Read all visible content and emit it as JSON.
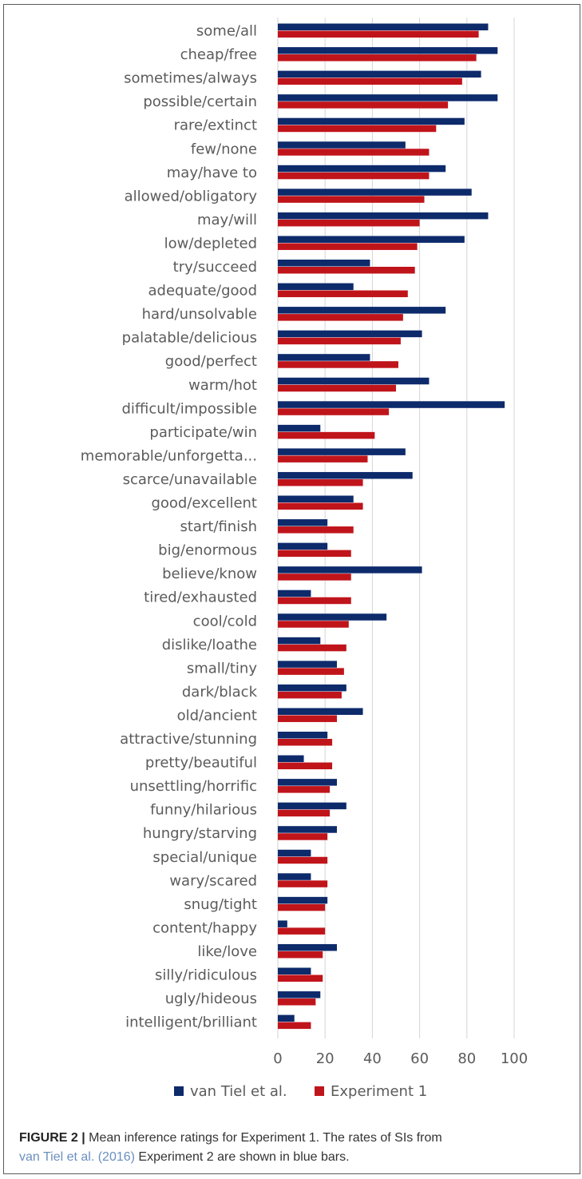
{
  "chart_data": {
    "type": "bar",
    "orientation": "horizontal",
    "categories": [
      "some/all",
      "cheap/free",
      "sometimes/always",
      "possible/certain",
      "rare/extinct",
      "few/none",
      "may/have to",
      "allowed/obligatory",
      "may/will",
      "low/depleted",
      "try/succeed",
      "adequate/good",
      "hard/unsolvable",
      "palatable/delicious",
      "good/perfect",
      "warm/hot",
      "difficult/impossible",
      "participate/win",
      "memorable/unforgetta...",
      "scarce/unavailable",
      "good/excellent",
      "start/finish",
      "big/enormous",
      "believe/know",
      "tired/exhausted",
      "cool/cold",
      "dislike/loathe",
      "small/tiny",
      "dark/black",
      "old/ancient",
      "attractive/stunning",
      "pretty/beautiful",
      "unsettling/horrific",
      "funny/hilarious",
      "hungry/starving",
      "special/unique",
      "wary/scared",
      "snug/tight",
      "content/happy",
      "like/love",
      "silly/ridiculous",
      "ugly/hideous",
      "intelligent/brilliant"
    ],
    "series": [
      {
        "name": "van Tiel et al.",
        "color": "#0d2a6b",
        "values": [
          89,
          93,
          86,
          93,
          79,
          54,
          71,
          82,
          89,
          79,
          39,
          32,
          71,
          61,
          39,
          64,
          96,
          18,
          54,
          57,
          32,
          21,
          21,
          61,
          14,
          46,
          18,
          25,
          29,
          36,
          21,
          11,
          25,
          29,
          25,
          14,
          14,
          21,
          4,
          25,
          14,
          18,
          7
        ]
      },
      {
        "name": "Experiment 1",
        "color": "#c0141b",
        "values": [
          85,
          84,
          78,
          72,
          67,
          64,
          64,
          62,
          60,
          59,
          58,
          55,
          53,
          52,
          51,
          50,
          47,
          41,
          38,
          36,
          36,
          32,
          31,
          31,
          31,
          30,
          29,
          28,
          27,
          25,
          23,
          23,
          22,
          22,
          21,
          21,
          21,
          20,
          20,
          19,
          19,
          16,
          14
        ]
      }
    ],
    "xlim": [
      0,
      100
    ],
    "xticks": [
      "0",
      "20",
      "40",
      "60",
      "80",
      "100"
    ],
    "grid": true,
    "legend": "bottom",
    "xlabel": "",
    "ylabel": ""
  },
  "caption": {
    "label": "FIGURE 2 |",
    "text_1": " Mean inference ratings for Experiment 1. The rates of SIs from",
    "ref": "van Tiel et al. (2016)",
    "text_2": " Experiment 2 are shown in blue bars."
  }
}
